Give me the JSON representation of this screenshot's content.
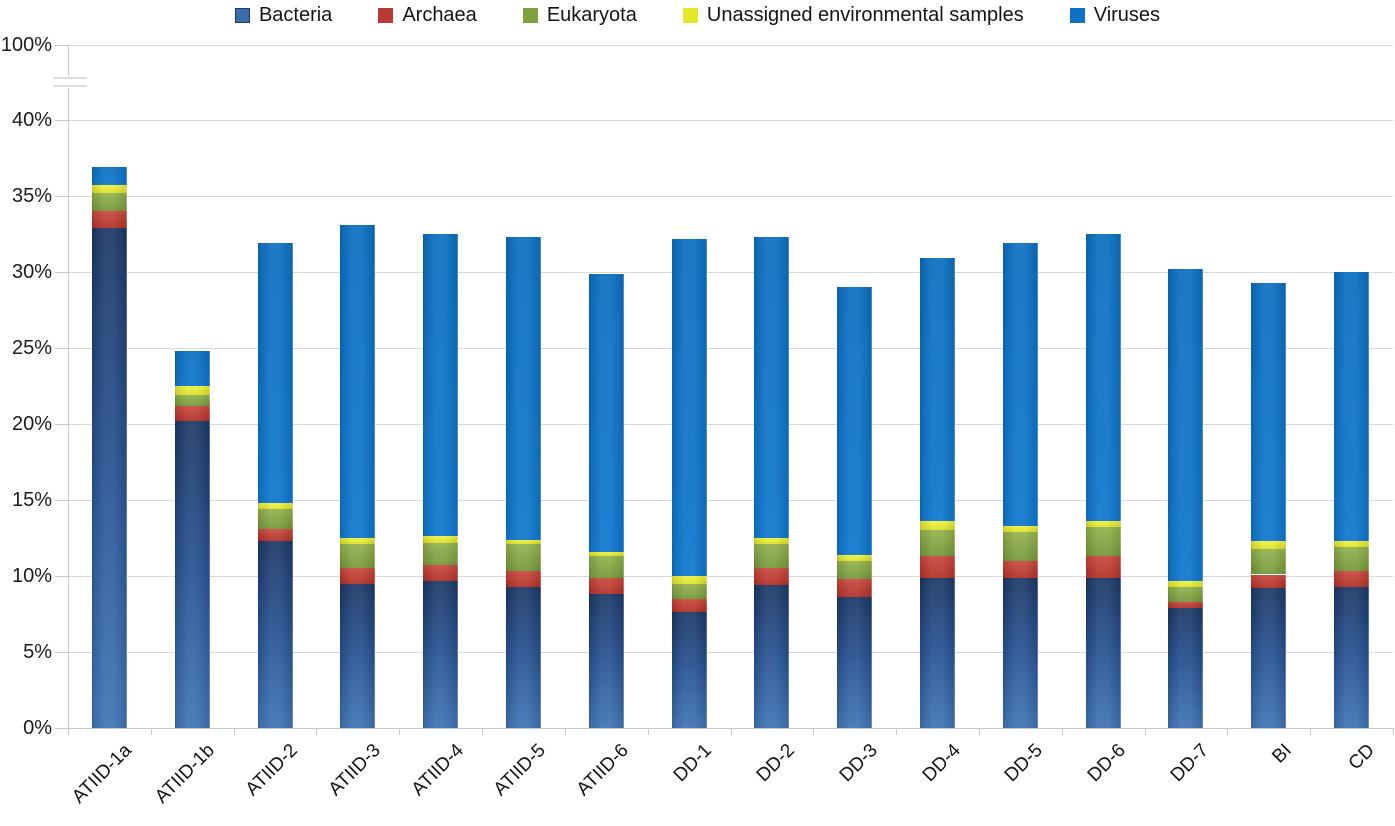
{
  "chart_data": {
    "type": "bar",
    "stacked": true,
    "title": "",
    "xlabel": "",
    "ylabel": "",
    "legend_position": "top",
    "categories": [
      "ATIID-1a",
      "ATIID-1b",
      "ATIID-2",
      "ATIID-3",
      "ATIID-4",
      "ATIID-5",
      "ATIID-6",
      "DD-1",
      "DD-2",
      "DD-3",
      "DD-4",
      "DD-5",
      "DD-6",
      "DD-7",
      "BI",
      "CD"
    ],
    "series": [
      {
        "name": "Bacteria",
        "color": "#3a6bad",
        "fill": {
          "top": "#1c3866",
          "mid": "#27508f",
          "bottom": "#3f74b5",
          "border": "#1f3864"
        },
        "values": [
          32.9,
          20.2,
          12.3,
          9.5,
          9.7,
          9.3,
          8.8,
          7.6,
          9.4,
          8.6,
          9.9,
          9.9,
          9.9,
          7.9,
          9.2,
          9.3
        ]
      },
      {
        "name": "Archaea",
        "color": "#b93b31",
        "fill": {
          "top": "#c94a3e",
          "bottom": "#b23028"
        },
        "values": [
          1.1,
          1.0,
          0.8,
          1.0,
          1.0,
          1.0,
          1.1,
          0.9,
          1.1,
          1.2,
          1.4,
          1.1,
          1.4,
          0.4,
          0.9,
          1.0
        ]
      },
      {
        "name": "Eukaryota",
        "color": "#7ea140",
        "fill": {
          "top": "#93b24c",
          "bottom": "#74983a"
        },
        "values": [
          1.2,
          0.7,
          1.3,
          1.6,
          1.5,
          1.8,
          1.4,
          1.0,
          1.6,
          1.2,
          1.7,
          1.9,
          1.9,
          1.0,
          1.7,
          1.6
        ]
      },
      {
        "name": "Unassigned environmental samples",
        "color": "#e3e829",
        "fill": {
          "top": "#eef23f",
          "bottom": "#dce02a"
        },
        "values": [
          0.5,
          0.6,
          0.4,
          0.4,
          0.4,
          0.3,
          0.3,
          0.5,
          0.4,
          0.4,
          0.6,
          0.4,
          0.4,
          0.4,
          0.5,
          0.4
        ]
      },
      {
        "name": "Viruses",
        "color": "#0d72c6",
        "fill": {
          "top": "#0b6fc0",
          "bottom": "#0e76cd"
        },
        "values": [
          1.2,
          2.3,
          17.1,
          20.6,
          19.9,
          19.9,
          18.3,
          22.2,
          19.8,
          17.6,
          17.3,
          18.6,
          18.9,
          20.5,
          17.0,
          17.7
        ]
      }
    ],
    "y_axis": {
      "unit": "%",
      "tick_labels": [
        "100%",
        "40%",
        "35%",
        "30%",
        "25%",
        "20%",
        "15%",
        "10%",
        "5%",
        "0%"
      ],
      "tick_values": [
        100,
        40,
        35,
        30,
        25,
        20,
        15,
        10,
        5,
        0
      ],
      "shown_range": [
        0,
        40
      ],
      "axis_break_between": [
        40,
        100
      ],
      "grid": true
    },
    "x_axis": {
      "label_rotation_deg": 45
    }
  }
}
